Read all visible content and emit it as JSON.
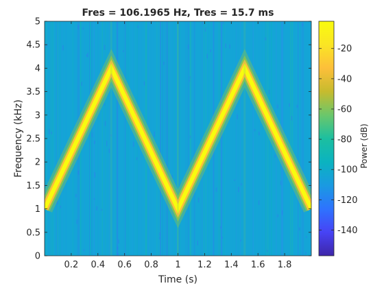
{
  "chart_data": {
    "type": "heatmap",
    "subtype": "spectrogram",
    "title": "Fres = 106.1965 Hz, Tres = 15.7 ms",
    "xlabel": "Time (s)",
    "ylabel": "Frequency (kHz)",
    "xlim": [
      0,
      2
    ],
    "ylim": [
      0,
      5
    ],
    "xticks": [
      0.2,
      0.4,
      0.6,
      0.8,
      1,
      1.2,
      1.4,
      1.6,
      1.8
    ],
    "xtick_labels": [
      "0.2",
      "0.4",
      "0.6",
      "0.8",
      "1",
      "1.2",
      "1.4",
      "1.6",
      "1.8"
    ],
    "yticks": [
      0,
      0.5,
      1,
      1.5,
      2,
      2.5,
      3,
      3.5,
      4,
      4.5,
      5
    ],
    "ytick_labels": [
      "0",
      "0.5",
      "1",
      "1.5",
      "2",
      "2.5",
      "3",
      "3.5",
      "4",
      "4.5",
      "5"
    ],
    "colormap": "parula",
    "colorbar": {
      "label": "Power (dB)",
      "range": [
        -157,
        -2
      ],
      "ticks": [
        -20,
        -40,
        -60,
        -80,
        -100,
        -120,
        -140
      ],
      "tick_labels": [
        "-20",
        "-40",
        "-60",
        "-80",
        "-100",
        "-120",
        "-140"
      ]
    },
    "background_power_db": -90,
    "ridge_power_db": -5,
    "ridge": {
      "x": [
        0,
        0.5,
        1.0,
        1.5,
        2.0
      ],
      "y": [
        1.0,
        4.0,
        1.0,
        4.0,
        1.0
      ]
    },
    "colors": {
      "ridge_core": "#f9fb0e",
      "ridge_edge": "#fcbf3a",
      "ridge_halo": "#9bc93c",
      "background": "#14a5d6",
      "colorbar_stops": [
        "#3e26a8",
        "#4743f5",
        "#2e73fe",
        "#1a9ae1",
        "#0bb3c0",
        "#1cbfa0",
        "#6bc76b",
        "#c6bb2e",
        "#fdbf3a",
        "#fae524",
        "#f9fb0e"
      ]
    }
  }
}
